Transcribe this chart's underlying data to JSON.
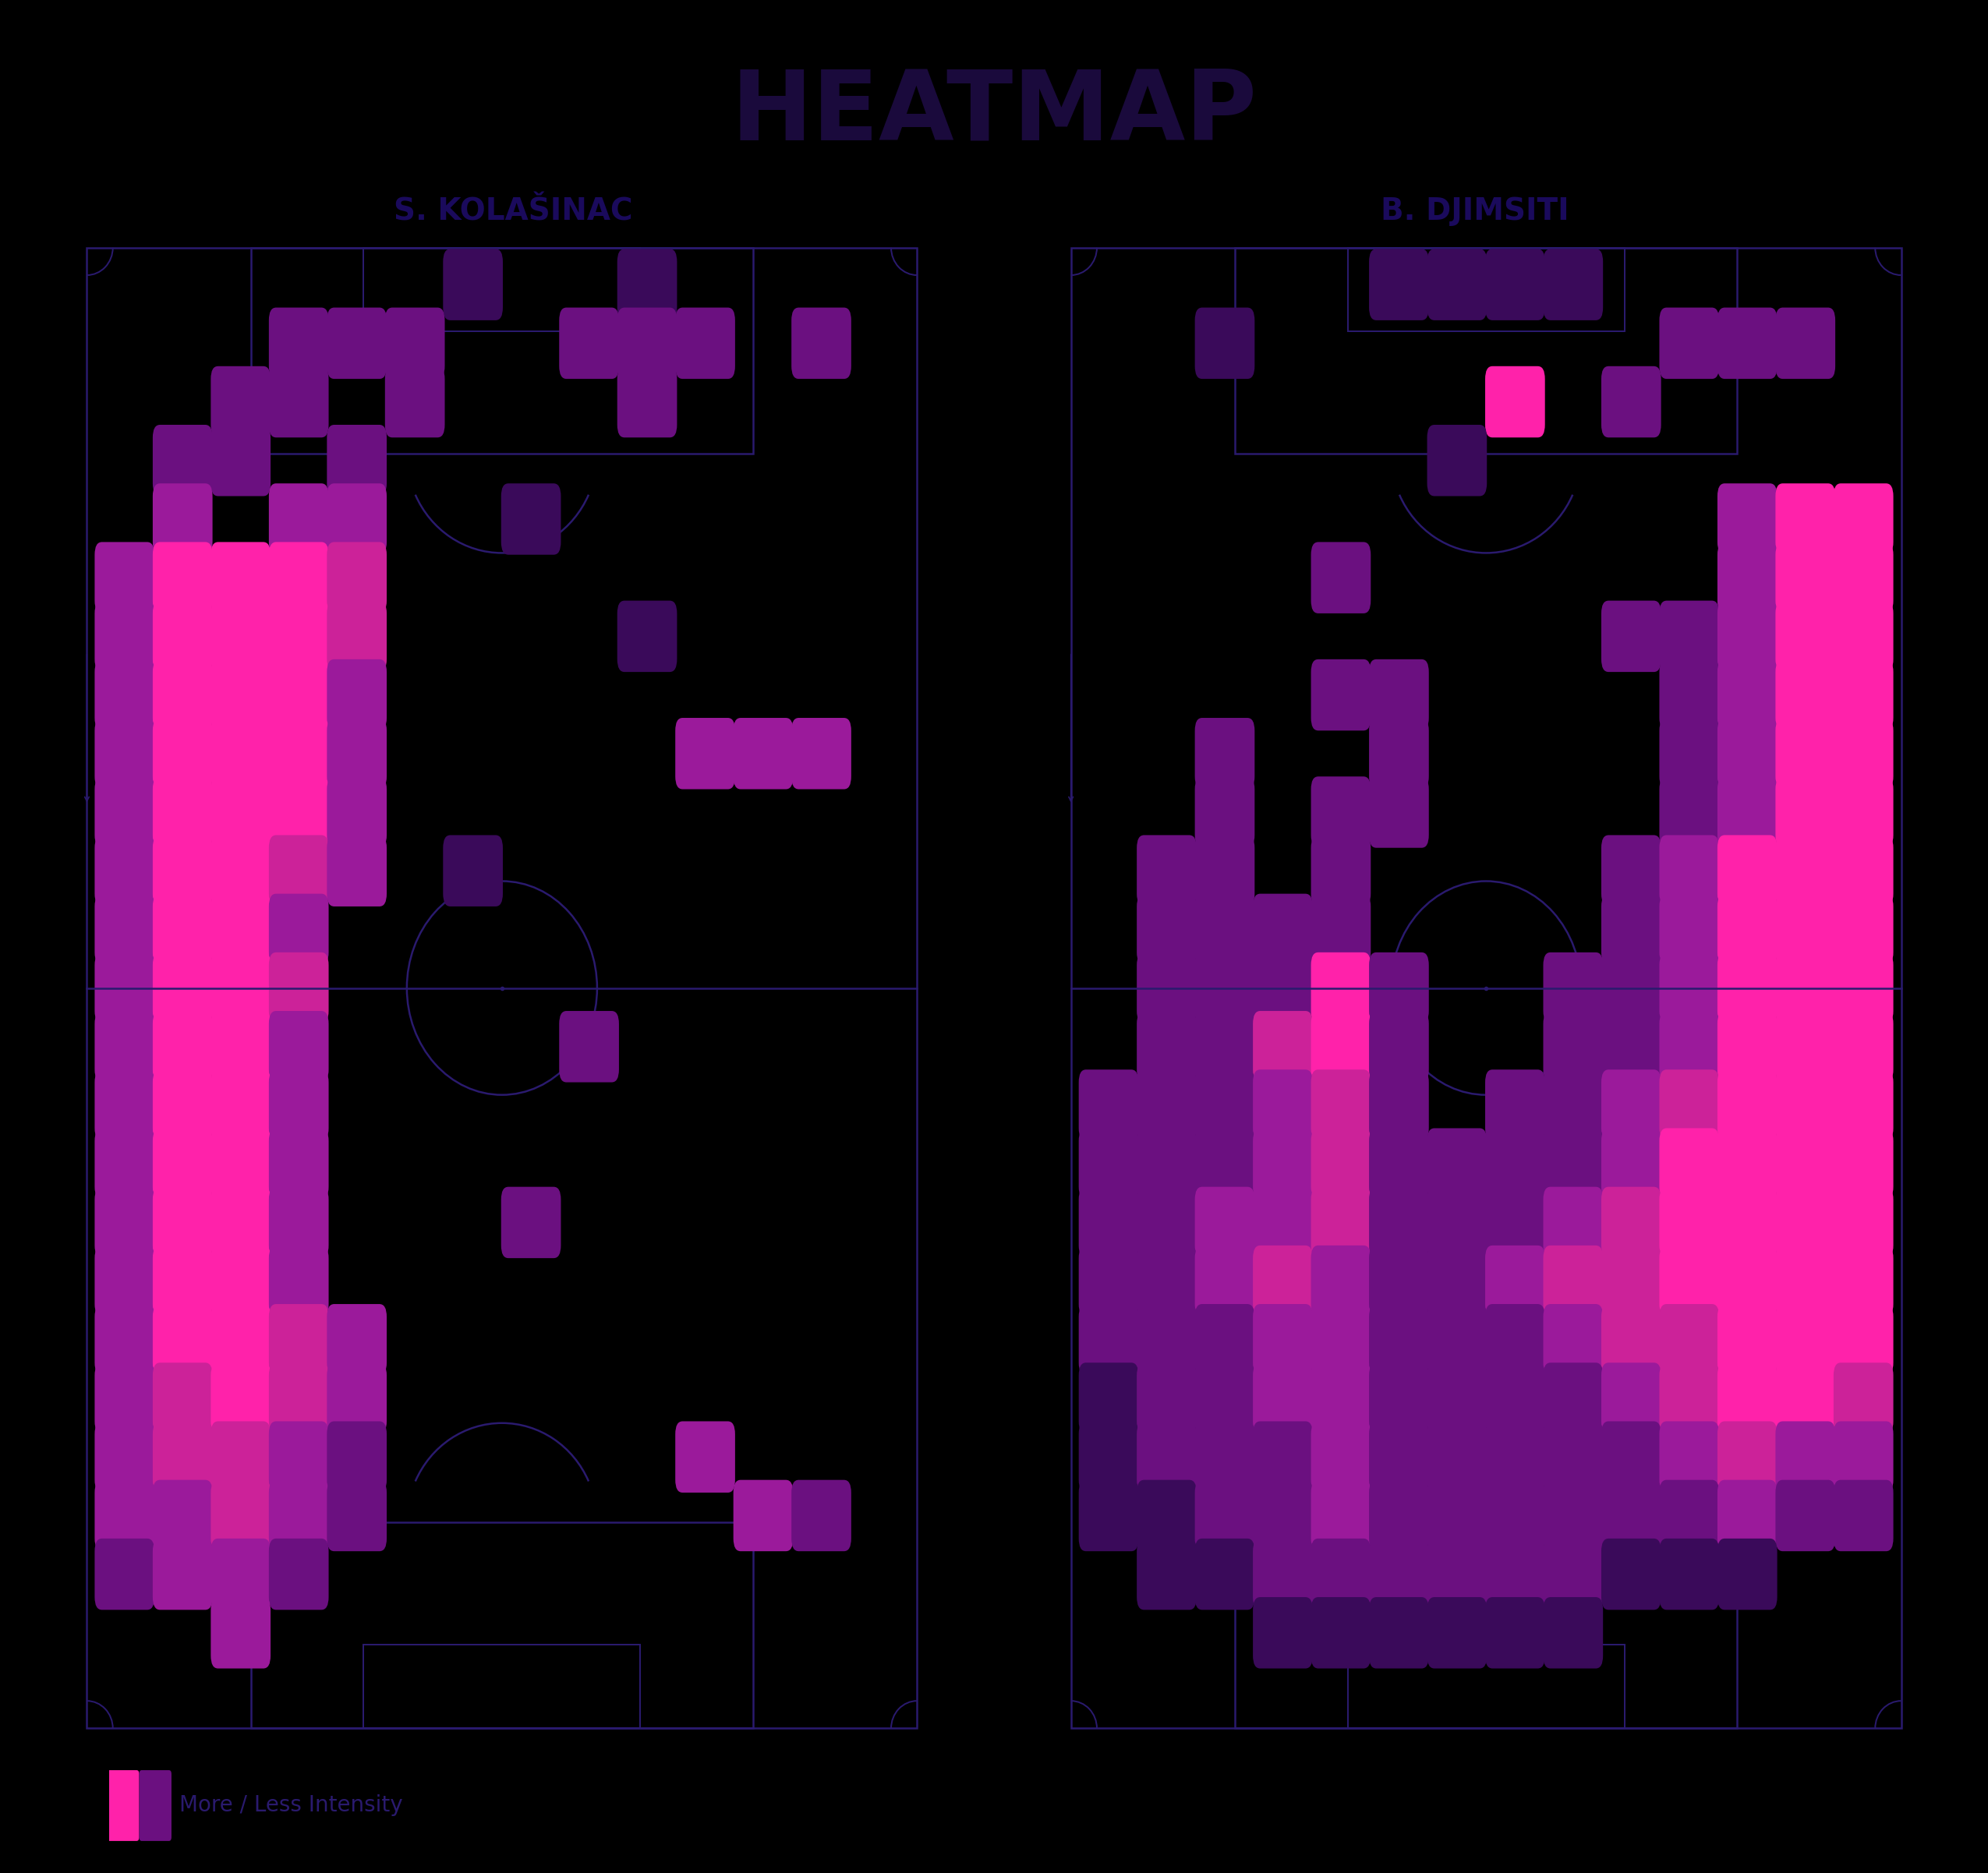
{
  "title": "HEATMAP",
  "title_color": "#1a0a3c",
  "bg_color": "#000000",
  "pitch_color": "#06082a",
  "pitch_line_color": "#2a1a6e",
  "player1_name": "S. KOLAŠINAC",
  "player2_name": "B. DJIMSITI",
  "name_color": "#1a0a5c",
  "legend_text": "More / Less Intensity",
  "legend_color": "#2a1a6e",
  "colors": {
    "0": null,
    "1": "#3a0a5a",
    "2": "#6b1080",
    "3": "#9b1a9b",
    "4": "#cc2299",
    "5": "#ff22aa"
  },
  "grid_cols": 14,
  "grid_rows": 25,
  "player1_grid": [
    [
      0,
      0,
      0,
      0,
      0,
      0,
      1,
      0,
      0,
      1,
      0,
      0,
      0,
      0
    ],
    [
      0,
      0,
      0,
      2,
      2,
      2,
      0,
      0,
      2,
      2,
      2,
      0,
      2,
      0
    ],
    [
      0,
      0,
      2,
      2,
      0,
      2,
      0,
      0,
      0,
      2,
      0,
      0,
      0,
      0
    ],
    [
      0,
      2,
      2,
      0,
      2,
      0,
      0,
      0,
      0,
      0,
      0,
      0,
      0,
      0
    ],
    [
      0,
      3,
      0,
      3,
      3,
      0,
      0,
      1,
      0,
      0,
      0,
      0,
      0,
      0
    ],
    [
      3,
      5,
      5,
      5,
      4,
      0,
      0,
      0,
      0,
      0,
      0,
      0,
      0,
      0
    ],
    [
      3,
      5,
      5,
      5,
      4,
      0,
      0,
      0,
      0,
      1,
      0,
      0,
      0,
      0
    ],
    [
      3,
      5,
      5,
      5,
      3,
      0,
      0,
      0,
      0,
      0,
      0,
      0,
      0,
      0
    ],
    [
      3,
      5,
      5,
      5,
      3,
      0,
      0,
      0,
      0,
      0,
      3,
      3,
      3,
      0
    ],
    [
      3,
      5,
      5,
      5,
      3,
      0,
      0,
      0,
      0,
      0,
      0,
      0,
      0,
      0
    ],
    [
      3,
      5,
      5,
      4,
      3,
      0,
      1,
      0,
      0,
      0,
      0,
      0,
      0,
      0
    ],
    [
      3,
      5,
      5,
      3,
      0,
      0,
      0,
      0,
      0,
      0,
      0,
      0,
      0,
      0
    ],
    [
      3,
      5,
      5,
      4,
      0,
      0,
      0,
      0,
      0,
      0,
      0,
      0,
      0,
      0
    ],
    [
      3,
      5,
      5,
      3,
      0,
      0,
      0,
      0,
      2,
      0,
      0,
      0,
      0,
      0
    ],
    [
      3,
      5,
      5,
      3,
      0,
      0,
      0,
      0,
      0,
      0,
      0,
      0,
      0,
      0
    ],
    [
      3,
      5,
      5,
      3,
      0,
      0,
      0,
      0,
      0,
      0,
      0,
      0,
      0,
      0
    ],
    [
      3,
      5,
      5,
      3,
      0,
      0,
      0,
      2,
      0,
      0,
      0,
      0,
      0,
      0
    ],
    [
      3,
      5,
      5,
      3,
      0,
      0,
      0,
      0,
      0,
      0,
      0,
      0,
      0,
      0
    ],
    [
      3,
      5,
      5,
      4,
      3,
      0,
      0,
      0,
      0,
      0,
      0,
      0,
      0,
      0
    ],
    [
      3,
      4,
      5,
      4,
      3,
      0,
      0,
      0,
      0,
      0,
      0,
      0,
      0,
      0
    ],
    [
      3,
      4,
      4,
      3,
      2,
      0,
      0,
      0,
      0,
      0,
      3,
      0,
      0,
      0
    ],
    [
      3,
      3,
      4,
      3,
      2,
      0,
      0,
      0,
      0,
      0,
      0,
      3,
      2,
      0
    ],
    [
      2,
      3,
      3,
      2,
      0,
      0,
      0,
      0,
      0,
      0,
      0,
      0,
      0,
      0
    ],
    [
      0,
      0,
      3,
      0,
      0,
      0,
      0,
      0,
      0,
      0,
      0,
      0,
      0,
      0
    ],
    [
      0,
      0,
      0,
      0,
      0,
      0,
      0,
      0,
      0,
      0,
      0,
      0,
      0,
      0
    ]
  ],
  "player2_grid": [
    [
      0,
      0,
      0,
      0,
      0,
      1,
      1,
      1,
      1,
      0,
      0,
      0,
      0,
      0
    ],
    [
      0,
      0,
      1,
      0,
      0,
      0,
      0,
      0,
      0,
      0,
      2,
      2,
      2,
      0
    ],
    [
      0,
      0,
      0,
      0,
      0,
      0,
      0,
      5,
      0,
      2,
      0,
      0,
      0,
      0
    ],
    [
      0,
      0,
      0,
      0,
      0,
      0,
      1,
      0,
      0,
      0,
      0,
      0,
      0,
      0
    ],
    [
      0,
      0,
      0,
      0,
      0,
      0,
      0,
      0,
      0,
      0,
      0,
      3,
      5,
      5
    ],
    [
      0,
      0,
      0,
      0,
      2,
      0,
      0,
      0,
      0,
      0,
      0,
      3,
      5,
      5
    ],
    [
      0,
      0,
      0,
      0,
      0,
      0,
      0,
      0,
      0,
      2,
      2,
      3,
      5,
      5
    ],
    [
      0,
      0,
      0,
      0,
      2,
      2,
      0,
      0,
      0,
      0,
      2,
      3,
      5,
      5
    ],
    [
      0,
      0,
      2,
      0,
      0,
      2,
      0,
      0,
      0,
      0,
      2,
      3,
      5,
      5
    ],
    [
      0,
      0,
      2,
      0,
      2,
      2,
      0,
      0,
      0,
      0,
      2,
      3,
      5,
      5
    ],
    [
      0,
      2,
      2,
      0,
      2,
      0,
      0,
      0,
      0,
      2,
      3,
      5,
      5,
      5
    ],
    [
      0,
      2,
      2,
      2,
      2,
      0,
      0,
      0,
      0,
      2,
      3,
      5,
      5,
      5
    ],
    [
      0,
      2,
      2,
      2,
      5,
      2,
      0,
      0,
      2,
      2,
      3,
      5,
      5,
      5
    ],
    [
      0,
      2,
      2,
      4,
      5,
      2,
      0,
      0,
      2,
      2,
      3,
      5,
      5,
      5
    ],
    [
      2,
      2,
      2,
      3,
      4,
      2,
      0,
      2,
      2,
      3,
      4,
      5,
      5,
      5
    ],
    [
      2,
      2,
      2,
      3,
      4,
      2,
      2,
      2,
      2,
      3,
      5,
      5,
      5,
      5
    ],
    [
      2,
      2,
      3,
      3,
      4,
      2,
      2,
      2,
      3,
      4,
      5,
      5,
      5,
      5
    ],
    [
      2,
      2,
      3,
      4,
      3,
      2,
      2,
      3,
      4,
      4,
      5,
      5,
      5,
      5
    ],
    [
      2,
      2,
      2,
      3,
      3,
      2,
      2,
      2,
      3,
      4,
      4,
      5,
      5,
      5
    ],
    [
      1,
      2,
      2,
      3,
      3,
      2,
      2,
      2,
      2,
      3,
      4,
      5,
      5,
      4
    ],
    [
      1,
      2,
      2,
      2,
      3,
      2,
      2,
      2,
      2,
      2,
      3,
      4,
      3,
      3
    ],
    [
      1,
      1,
      2,
      2,
      3,
      2,
      2,
      2,
      2,
      2,
      2,
      3,
      2,
      2
    ],
    [
      0,
      1,
      1,
      2,
      2,
      2,
      2,
      2,
      2,
      1,
      1,
      1,
      0,
      0
    ],
    [
      0,
      0,
      0,
      1,
      1,
      1,
      1,
      1,
      1,
      0,
      0,
      0,
      0,
      0
    ],
    [
      0,
      0,
      0,
      0,
      0,
      0,
      0,
      0,
      0,
      0,
      0,
      0,
      0,
      0
    ]
  ]
}
